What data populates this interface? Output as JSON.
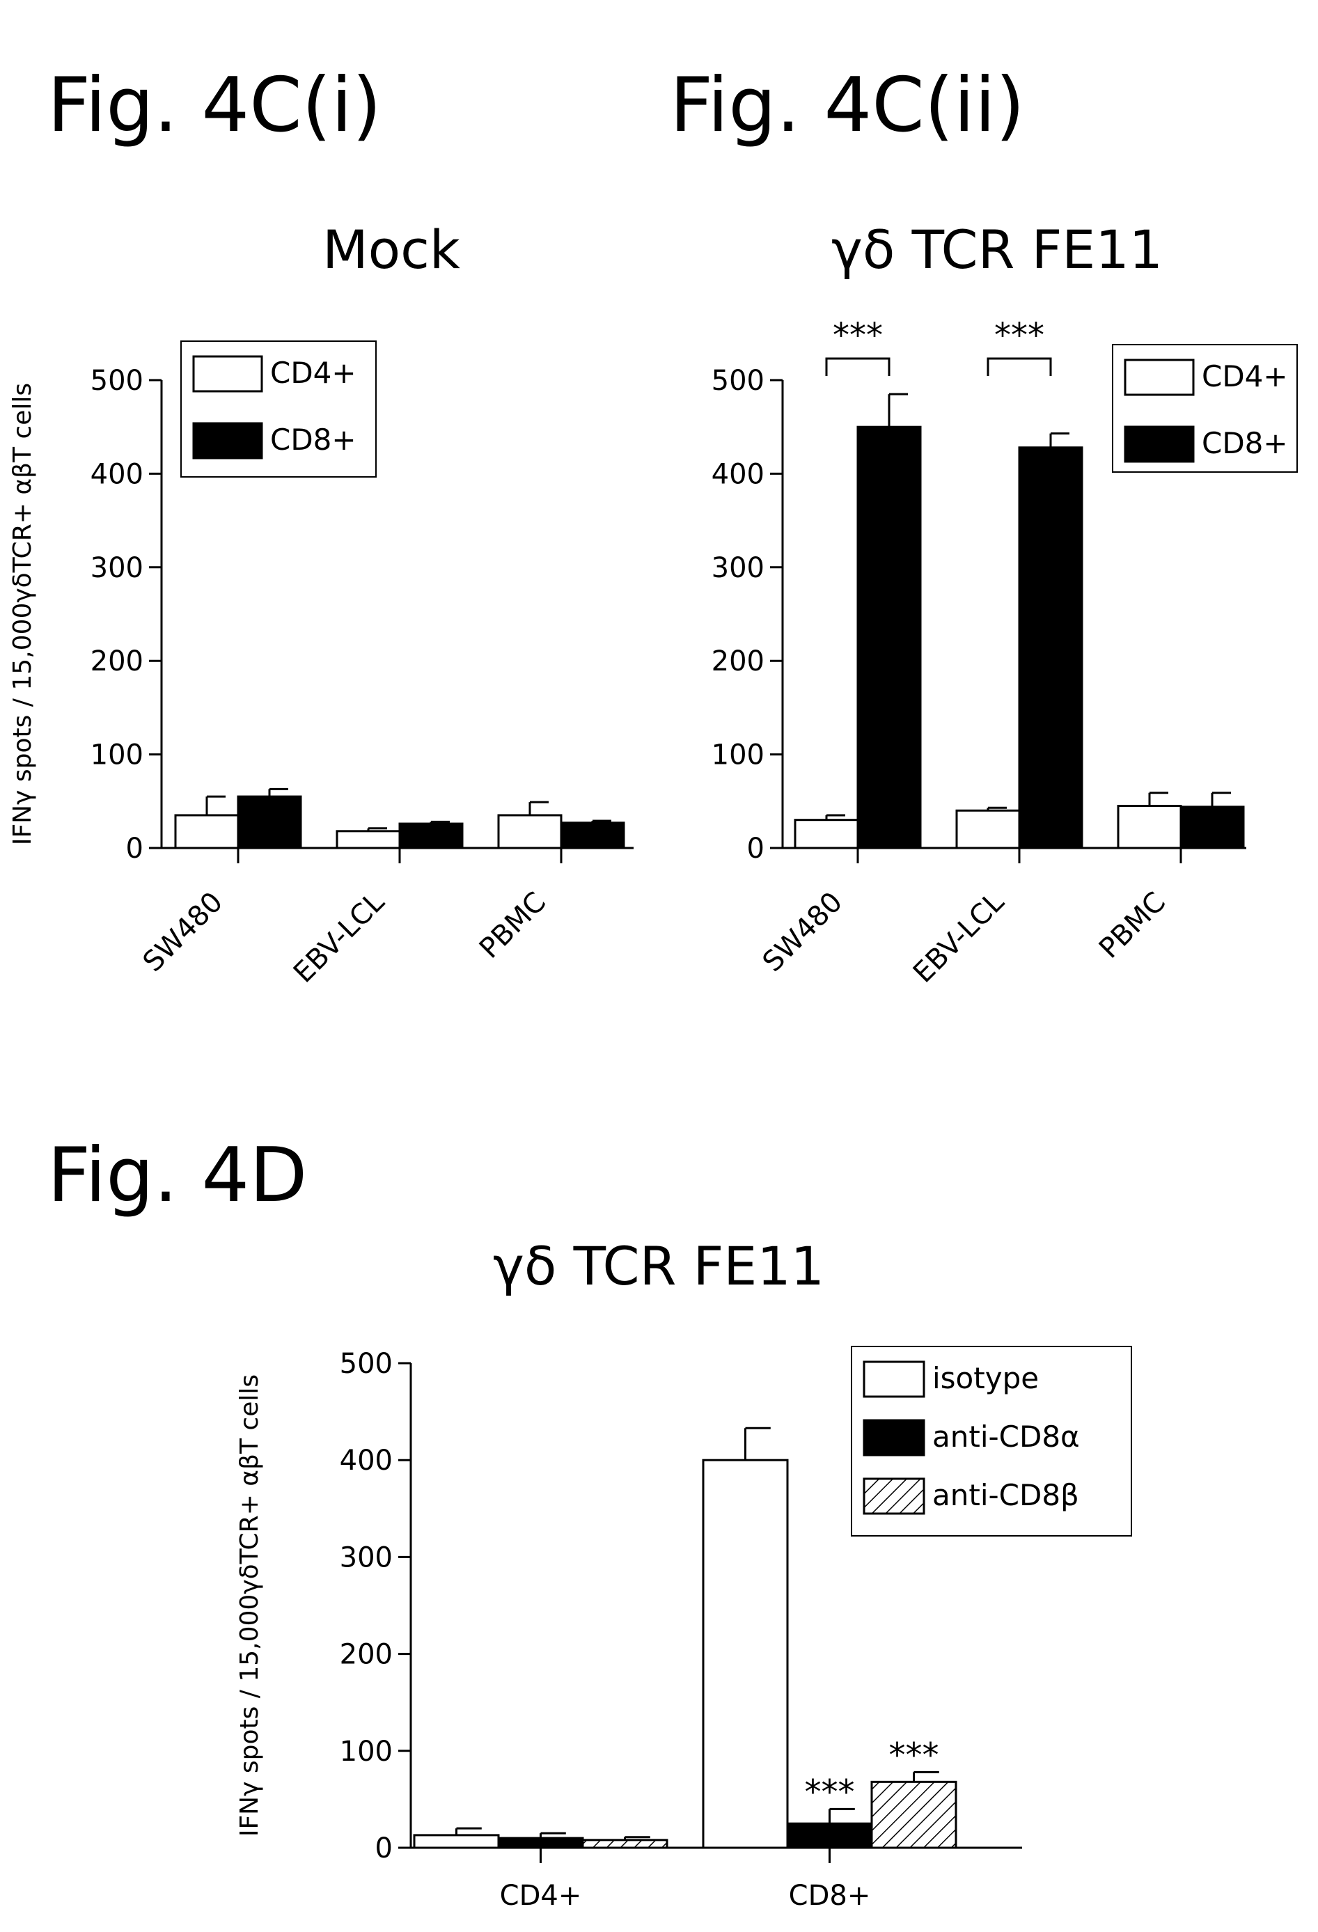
{
  "figure_labels": [
    "Fig. 4C(i)",
    "Fig. 4C(ii)",
    "Fig. 4D"
  ],
  "chart_data": [
    {
      "id": "c1",
      "type": "bar",
      "title": "Mock",
      "ylabel": "IFNγ spots / 15,000γδTCR+ αβT cells",
      "ylim": [
        0,
        500
      ],
      "yticks": [
        0,
        100,
        200,
        300,
        400,
        500
      ],
      "categories": [
        "SW480",
        "EBV-LCL",
        "PBMC"
      ],
      "series": [
        {
          "name": "CD4+",
          "fill": "white",
          "values": [
            35,
            18,
            35
          ],
          "errors": [
            20,
            3,
            14
          ]
        },
        {
          "name": "CD8+",
          "fill": "black",
          "values": [
            55,
            26,
            27
          ],
          "errors": [
            8,
            2,
            2
          ]
        }
      ],
      "significance": [],
      "legend": "top-right inside"
    },
    {
      "id": "c2",
      "type": "bar",
      "title": "γδ TCR FE11",
      "ylabel": "",
      "ylim": [
        0,
        500
      ],
      "yticks": [
        0,
        100,
        200,
        300,
        400,
        500
      ],
      "categories": [
        "SW480",
        "EBV-LCL",
        "PBMC"
      ],
      "series": [
        {
          "name": "CD4+",
          "fill": "white",
          "values": [
            30,
            40,
            45
          ],
          "errors": [
            5,
            3,
            14
          ]
        },
        {
          "name": "CD8+",
          "fill": "black",
          "values": [
            450,
            428,
            44
          ],
          "errors": [
            35,
            15,
            15
          ]
        }
      ],
      "significance": [
        {
          "category": 0,
          "label": "***"
        },
        {
          "category": 1,
          "label": "***"
        }
      ],
      "legend": "top-right outside"
    },
    {
      "id": "c3",
      "type": "bar",
      "title": "γδ TCR FE11",
      "ylabel": "IFNγ spots / 15,000γδTCR+ αβT cells",
      "ylim": [
        0,
        500
      ],
      "yticks": [
        0,
        100,
        200,
        300,
        400,
        500
      ],
      "categories": [
        "CD4+",
        "CD8+"
      ],
      "series": [
        {
          "name": "isotype",
          "fill": "white",
          "values": [
            13,
            400
          ],
          "errors": [
            7,
            33
          ]
        },
        {
          "name": "anti-CD8α",
          "fill": "black",
          "values": [
            10,
            25
          ],
          "errors": [
            5,
            15
          ]
        },
        {
          "name": "anti-CD8β",
          "fill": "hatch",
          "values": [
            8,
            68
          ],
          "errors": [
            3,
            10
          ]
        }
      ],
      "bar_labels": [
        {
          "series": 1,
          "category": 1,
          "label": "***"
        },
        {
          "series": 2,
          "category": 1,
          "label": "***"
        }
      ],
      "legend": "top-right inside"
    }
  ]
}
